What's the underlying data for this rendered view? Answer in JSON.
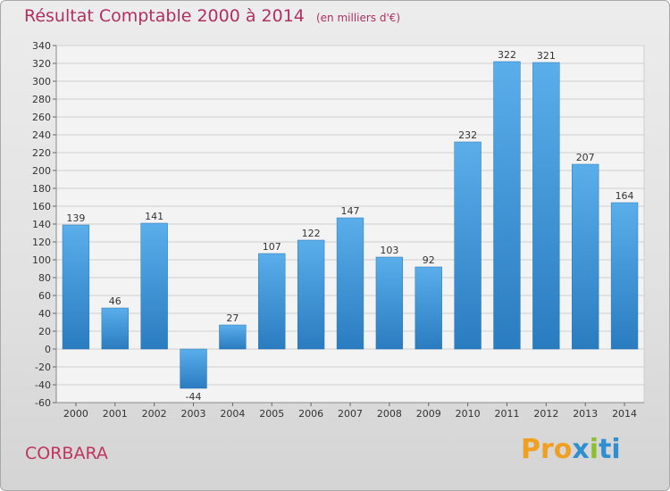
{
  "title": "Résultat Comptable 2000 à 2014",
  "unit_note": "(en milliers d'€)",
  "commune": "CORBARA",
  "logo": {
    "text": "Proxiti",
    "parts": [
      "Pro",
      "x",
      "i",
      "ti"
    ],
    "colors": [
      "#f0a020",
      "#2f8fd0",
      "#8bbf2f",
      "#2f8fd0"
    ]
  },
  "chart_data": {
    "type": "bar",
    "title": "Résultat Comptable 2000 à 2014",
    "xlabel": "",
    "ylabel": "",
    "categories": [
      "2000",
      "2001",
      "2002",
      "2003",
      "2004",
      "2005",
      "2006",
      "2007",
      "2008",
      "2009",
      "2010",
      "2011",
      "2012",
      "2013",
      "2014"
    ],
    "values": [
      139,
      46,
      141,
      -44,
      27,
      107,
      122,
      147,
      103,
      92,
      232,
      322,
      321,
      207,
      164
    ],
    "ylim": [
      -60,
      340
    ],
    "yticks": [
      -60,
      -40,
      -20,
      0,
      20,
      40,
      60,
      80,
      100,
      120,
      140,
      160,
      180,
      200,
      220,
      240,
      260,
      280,
      300,
      320,
      340
    ],
    "grid": true,
    "bar_color": "#3f93d6"
  }
}
